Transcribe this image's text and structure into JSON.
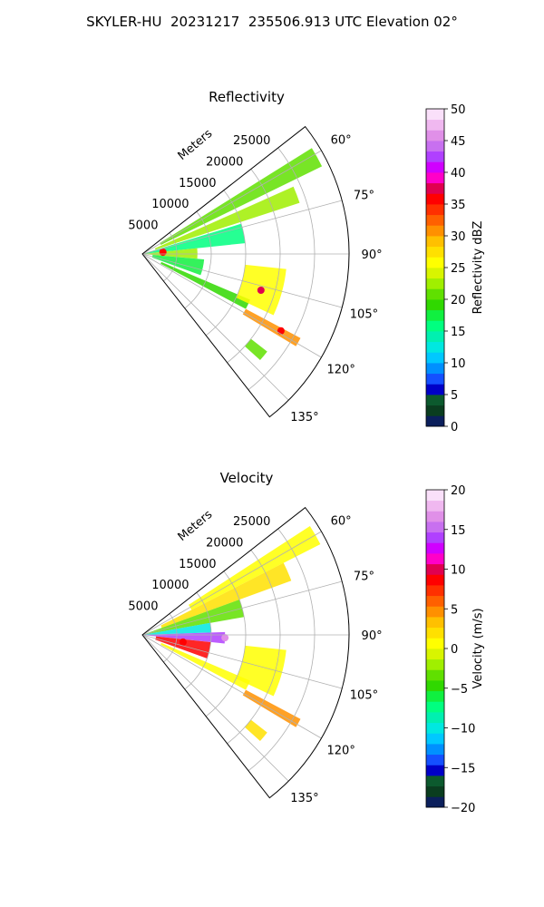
{
  "figure": {
    "suptitle": "SKYLER-HU  20231217  235506.913 UTC Elevation 02°"
  },
  "chart_data": [
    {
      "type": "heatmap",
      "subtype": "polar-sector radar PPI",
      "title": "Reflectivity",
      "radial_label": "Meters",
      "radial_ticks": [
        5000,
        10000,
        15000,
        20000,
        25000
      ],
      "radial_tick_labels": [
        "5000",
        "10000",
        "15000",
        "20000",
        "25000"
      ],
      "rmax": 30000,
      "angle_range_deg": [
        52,
        142
      ],
      "angle_ticks": [
        60,
        75,
        90,
        105,
        120,
        135
      ],
      "angle_tick_labels": [
        "60°",
        "75°",
        "90°",
        "105°",
        "120°",
        "135°"
      ],
      "grid": true,
      "colorbar": {
        "label": "Reflectivity dBZ",
        "vmin": 0,
        "vmax": 50,
        "ticks": [
          0,
          5,
          10,
          15,
          20,
          25,
          30,
          35,
          40,
          45,
          50
        ],
        "tick_labels": [
          "0",
          "5",
          "10",
          "15",
          "20",
          "25",
          "30",
          "35",
          "40",
          "45",
          "50"
        ],
        "colors": [
          "#0b1f5c",
          "#0a3d1f",
          "#0c5a2e",
          "#0000c8",
          "#1450ff",
          "#0090ff",
          "#00c8ff",
          "#00e8e0",
          "#00f0b0",
          "#00ff80",
          "#10f040",
          "#30d800",
          "#60e000",
          "#a0ef00",
          "#d8f500",
          "#ffff00",
          "#ffe000",
          "#ffc000",
          "#ff9000",
          "#ff6000",
          "#ff3000",
          "#ff0000",
          "#e00050",
          "#ff00c8",
          "#d000ff",
          "#b040ff",
          "#c870f0",
          "#e090e8",
          "#f0b8f0",
          "#fae0fa"
        ]
      },
      "echoes": [
        {
          "az": [
            58,
            64
          ],
          "r": [
            3000,
            29000
          ],
          "value": 20
        },
        {
          "az": [
            66,
            72
          ],
          "r": [
            2000,
            24000
          ],
          "value": 23
        },
        {
          "az": [
            73,
            84
          ],
          "r": [
            0,
            15000
          ],
          "value": 16
        },
        {
          "az": [
            84,
            95
          ],
          "r": [
            0,
            8000
          ],
          "value": 22
        },
        {
          "az": [
            95,
            110
          ],
          "r": [
            1500,
            9000
          ],
          "value": 18
        },
        {
          "az": [
            113,
            118
          ],
          "r": [
            3000,
            17000
          ],
          "value": 19
        },
        {
          "az": [
            118,
            121
          ],
          "r": [
            17000,
            26000
          ],
          "value": 30
        },
        {
          "az": [
            96,
            115
          ],
          "r": [
            15000,
            21000
          ],
          "value": 25
        },
        {
          "az": [
            128,
            132
          ],
          "r": [
            20000,
            23000
          ],
          "value": 20
        }
      ],
      "peak_cells": [
        {
          "az": 85,
          "r": 3000,
          "value": 35
        },
        {
          "az": 119,
          "r": 23000,
          "value": 36
        },
        {
          "az": 107,
          "r": 18000,
          "value": 38
        }
      ]
    },
    {
      "type": "heatmap",
      "subtype": "polar-sector radar PPI",
      "title": "Velocity",
      "radial_label": "Meters",
      "radial_ticks": [
        5000,
        10000,
        15000,
        20000,
        25000
      ],
      "radial_tick_labels": [
        "5000",
        "10000",
        "15000",
        "20000",
        "25000"
      ],
      "rmax": 30000,
      "angle_range_deg": [
        52,
        142
      ],
      "angle_ticks": [
        60,
        75,
        90,
        105,
        120,
        135
      ],
      "angle_tick_labels": [
        "60°",
        "75°",
        "90°",
        "105°",
        "120°",
        "135°"
      ],
      "grid": true,
      "colorbar": {
        "label": "Velocity (m/s)",
        "vmin": -20,
        "vmax": 20,
        "ticks": [
          -20,
          -15,
          -10,
          -5,
          0,
          5,
          10,
          15,
          20
        ],
        "tick_labels": [
          "−20",
          "−15",
          "−10",
          "−5",
          "0",
          "5",
          "10",
          "15",
          "20"
        ],
        "colors": [
          "#0b1f5c",
          "#0a3d1f",
          "#0c5a2e",
          "#0000c8",
          "#1450ff",
          "#0090ff",
          "#00c8ff",
          "#00e8e0",
          "#00f0b0",
          "#00ff80",
          "#10f040",
          "#30d800",
          "#60e000",
          "#a0ef00",
          "#d8f500",
          "#ffff00",
          "#ffe000",
          "#ffc000",
          "#ff9000",
          "#ff6000",
          "#ff3000",
          "#ff0000",
          "#e00050",
          "#ff00c8",
          "#d000ff",
          "#b040ff",
          "#c870f0",
          "#e090e8",
          "#f0b8f0",
          "#fae0fa"
        ]
      },
      "echoes": [
        {
          "az": [
            57,
            63
          ],
          "r": [
            8000,
            29000
          ],
          "value": 1
        },
        {
          "az": [
            63,
            70
          ],
          "r": [
            3000,
            23000
          ],
          "value": 2
        },
        {
          "az": [
            70,
            80
          ],
          "r": [
            0,
            15000
          ],
          "value": -4
        },
        {
          "az": [
            80,
            88
          ],
          "r": [
            0,
            10000
          ],
          "value": -10
        },
        {
          "az": [
            88,
            96
          ],
          "r": [
            0,
            12000
          ],
          "value": 14
        },
        {
          "az": [
            96,
            110
          ],
          "r": [
            2000,
            10000
          ],
          "value": 9
        },
        {
          "az": [
            113,
            118
          ],
          "r": [
            3000,
            17000
          ],
          "value": 0
        },
        {
          "az": [
            118,
            121
          ],
          "r": [
            17000,
            26000
          ],
          "value": 5
        },
        {
          "az": [
            96,
            115
          ],
          "r": [
            15000,
            21000
          ],
          "value": 1
        },
        {
          "az": [
            128,
            132
          ],
          "r": [
            20000,
            23000
          ],
          "value": 2
        }
      ],
      "peak_cells": [
        {
          "az": 92,
          "r": 12000,
          "value": 16
        },
        {
          "az": 100,
          "r": 6000,
          "value": 9
        }
      ]
    }
  ]
}
